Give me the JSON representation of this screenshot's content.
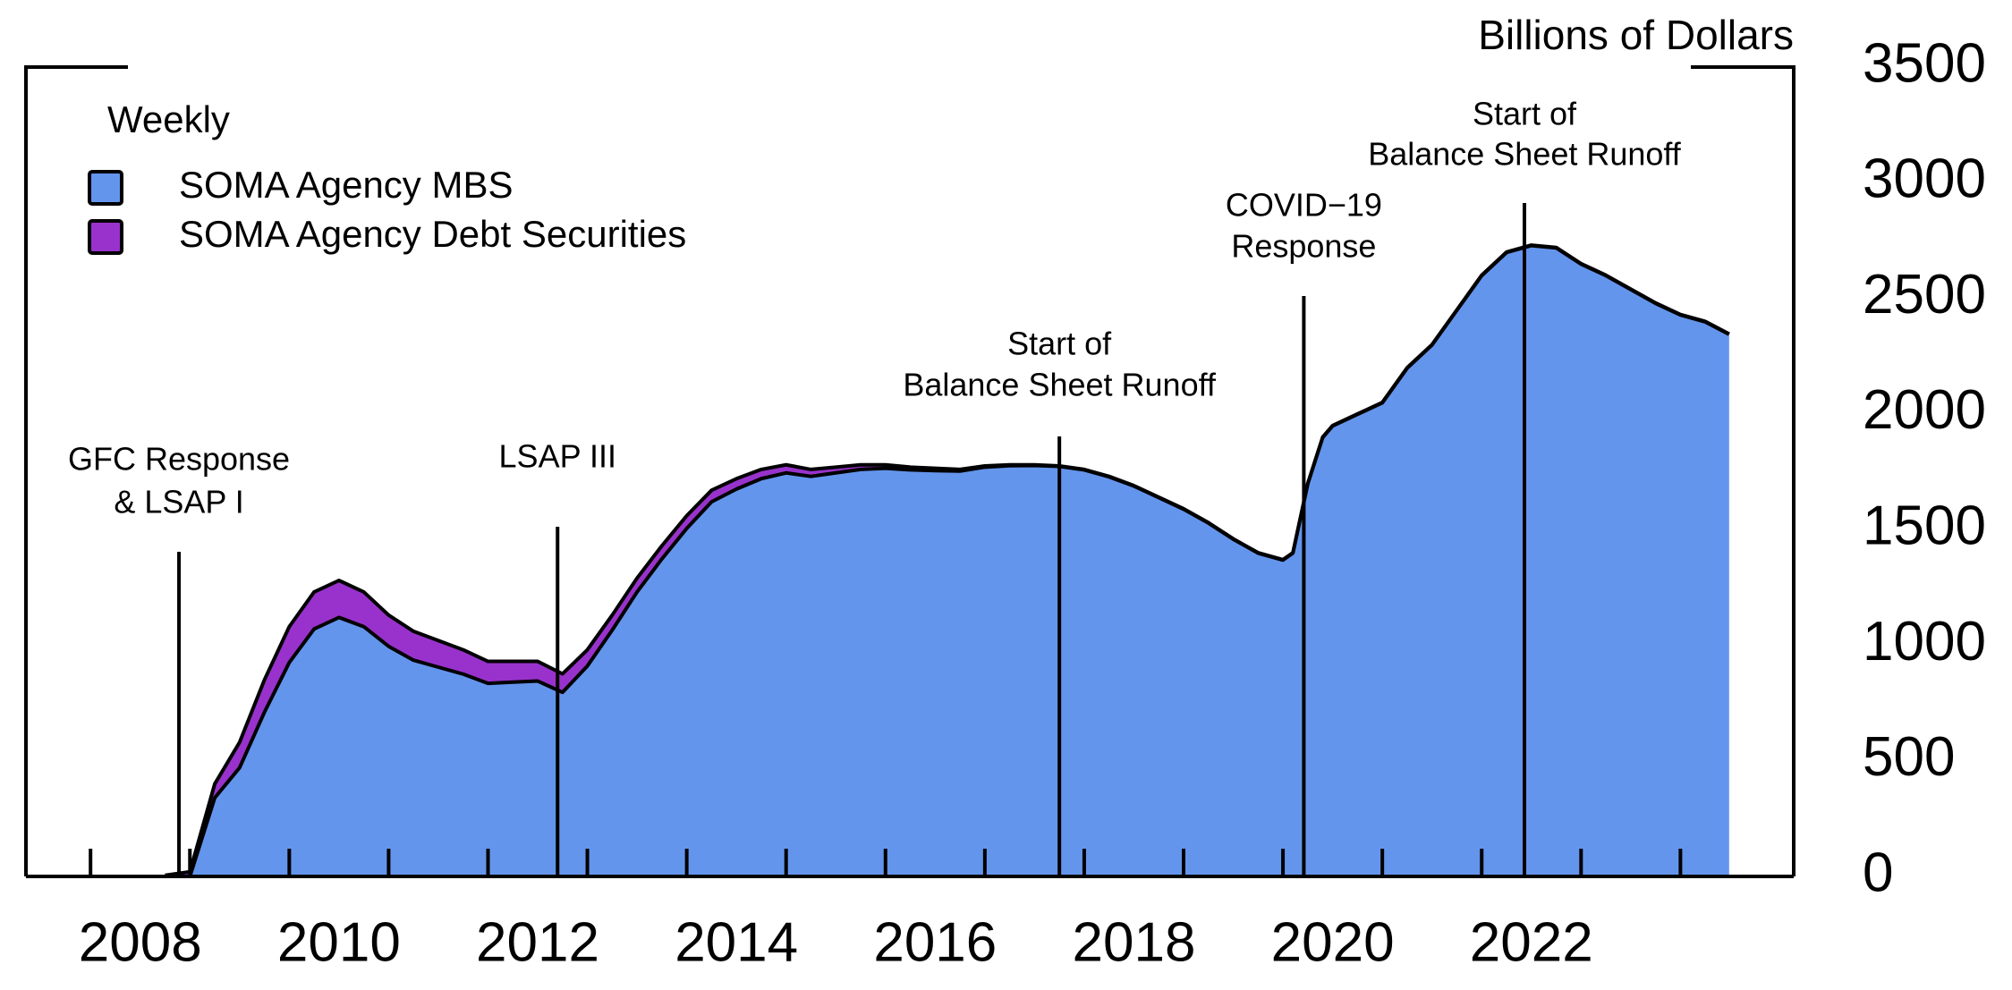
{
  "chart_data": {
    "type": "stacked_area",
    "unit_label": "Billions of Dollars",
    "legend_title": "Weekly",
    "x": [
      2008.75,
      2009,
      2009.25,
      2009.5,
      2009.75,
      2010,
      2010.25,
      2010.5,
      2010.75,
      2011,
      2011.25,
      2011.5,
      2011.75,
      2012,
      2012.25,
      2012.5,
      2012.75,
      2013,
      2013.25,
      2013.5,
      2013.75,
      2014,
      2014.25,
      2014.5,
      2014.75,
      2015,
      2015.25,
      2015.5,
      2015.75,
      2016,
      2016.25,
      2016.5,
      2016.75,
      2017,
      2017.25,
      2017.5,
      2017.75,
      2018,
      2018.25,
      2018.5,
      2018.75,
      2019,
      2019.25,
      2019.5,
      2019.75,
      2020,
      2020.1,
      2020.25,
      2020.4,
      2020.5,
      2020.75,
      2021,
      2021.25,
      2021.5,
      2021.75,
      2022,
      2022.25,
      2022.5,
      2022.75,
      2023,
      2023.25,
      2023.5,
      2023.75,
      2024,
      2024.25,
      2024.49
    ],
    "series": [
      {
        "name": "SOMA Agency MBS",
        "color": "#6495ed",
        "values": [
          0,
          0,
          340,
          470,
          710,
          925,
          1070,
          1120,
          1080,
          995,
          935,
          905,
          875,
          835,
          840,
          845,
          796,
          910,
          1065,
          1230,
          1373,
          1505,
          1620,
          1675,
          1720,
          1745,
          1730,
          1745,
          1760,
          1765,
          1758,
          1755,
          1753,
          1770,
          1776,
          1777,
          1773,
          1758,
          1728,
          1688,
          1638,
          1588,
          1528,
          1458,
          1398,
          1368,
          1398,
          1698,
          1898,
          1948,
          1998,
          2048,
          2198,
          2298,
          2448,
          2598,
          2698,
          2728,
          2718,
          2648,
          2598,
          2538,
          2478,
          2428,
          2398,
          2344
        ]
      },
      {
        "name": "SOMA Agency Debt Securities",
        "color": "#9932cc",
        "values": [
          5,
          20,
          60,
          110,
          140,
          155,
          160,
          160,
          150,
          135,
          125,
          115,
          105,
          95,
          90,
          85,
          80,
          70,
          65,
          60,
          57,
          55,
          50,
          45,
          40,
          35,
          30,
          25,
          20,
          15,
          12,
          10,
          7,
          5,
          4,
          3,
          2,
          2,
          2,
          2,
          2,
          2,
          2,
          2,
          2,
          2,
          2,
          2,
          2,
          2,
          2,
          2,
          2,
          2,
          2,
          2,
          2,
          2,
          2,
          2,
          2,
          2,
          2,
          2,
          2,
          2
        ]
      }
    ],
    "xlim": [
      2007.35,
      2025.14
    ],
    "xticks": [
      {
        "value": 2008,
        "label": "2008"
      },
      {
        "value": 2010,
        "label": "2010"
      },
      {
        "value": 2012,
        "label": "2012"
      },
      {
        "value": 2014,
        "label": "2014"
      },
      {
        "value": 2016,
        "label": "2016"
      },
      {
        "value": 2018,
        "label": "2018"
      },
      {
        "value": 2020,
        "label": "2020"
      },
      {
        "value": 2022,
        "label": "2022"
      }
    ],
    "xminorticks": [
      2009,
      2011,
      2013,
      2015,
      2017,
      2019,
      2021,
      2023,
      2024
    ],
    "ylim": [
      0,
      3500
    ],
    "yticks": [
      0,
      500,
      1000,
      1500,
      2000,
      2500,
      3000,
      3500
    ],
    "grid": false,
    "annotations": [
      {
        "x": 2008.89,
        "text": [
          "GFC Response",
          "& LSAP I"
        ]
      },
      {
        "x": 2012.7,
        "text": [
          "LSAP III"
        ]
      },
      {
        "x": 2017.75,
        "text": [
          "Start of",
          "Balance Sheet Runoff"
        ]
      },
      {
        "x": 2020.21,
        "text": [
          "COVID−19",
          "Response"
        ]
      },
      {
        "x": 2022.43,
        "text": [
          "Start of",
          "Balance Sheet Runoff"
        ]
      }
    ]
  }
}
